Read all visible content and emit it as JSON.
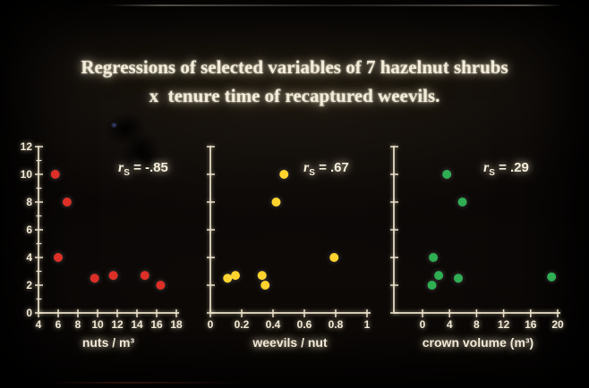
{
  "slide": {
    "title_line1": "Regressions of selected variables of 7 hazelnut shrubs",
    "title_line2": "x  tenure time of recaptured weevils."
  },
  "colors": {
    "background": "#0a0706",
    "text_glow": "#f3ecda",
    "axis": "#ece2cc",
    "red_points": "#dd2f27",
    "yellow_points": "#ffd42e",
    "green_points": "#2fae54"
  },
  "chart_data": [
    {
      "type": "scatter",
      "name": "nuts-per-m3-vs-tenure",
      "point_color": "#dd2f27",
      "r_symbol": "r",
      "r_subscript": "S",
      "r_value": "= -.85",
      "xlabel": "nuts / m³",
      "xlim": [
        4,
        18
      ],
      "xticks": [
        4,
        6,
        8,
        10,
        12,
        14,
        16,
        18
      ],
      "xtick_labels": [
        "4",
        "6",
        "8",
        "10",
        "12",
        "14",
        "16",
        "18"
      ],
      "ylim": [
        0,
        12
      ],
      "yticks": [
        0,
        2,
        4,
        6,
        8,
        10,
        12
      ],
      "ytick_labels": [
        "0",
        "2",
        "4",
        "6",
        "8",
        "10",
        "12"
      ],
      "show_ytick_labels": true,
      "minor_yticks": [
        1,
        3,
        5,
        7,
        9,
        11
      ],
      "points": [
        {
          "x": 5.7,
          "y": 10
        },
        {
          "x": 6.9,
          "y": 8
        },
        {
          "x": 6.0,
          "y": 4
        },
        {
          "x": 9.7,
          "y": 2.5
        },
        {
          "x": 11.6,
          "y": 2.7
        },
        {
          "x": 14.8,
          "y": 2.7
        },
        {
          "x": 16.4,
          "y": 2.0
        }
      ]
    },
    {
      "type": "scatter",
      "name": "weevils-per-nut-vs-tenure",
      "point_color": "#ffd42e",
      "r_symbol": "r",
      "r_subscript": "S",
      "r_value": "= .67",
      "xlabel": "weevils / nut",
      "xlim": [
        0,
        1
      ],
      "xticks": [
        0,
        0.2,
        0.4,
        0.6,
        0.8,
        1
      ],
      "xtick_labels": [
        "0",
        "0.2",
        "0.4",
        "0.6",
        "0.8",
        "1"
      ],
      "ylim": [
        0,
        12
      ],
      "yticks": [
        0,
        2,
        4,
        6,
        8,
        10,
        12
      ],
      "ytick_labels": [],
      "show_ytick_labels": false,
      "minor_yticks": [],
      "points": [
        {
          "x": 0.47,
          "y": 10
        },
        {
          "x": 0.42,
          "y": 8
        },
        {
          "x": 0.79,
          "y": 4
        },
        {
          "x": 0.11,
          "y": 2.5
        },
        {
          "x": 0.16,
          "y": 2.7
        },
        {
          "x": 0.33,
          "y": 2.7
        },
        {
          "x": 0.35,
          "y": 2.0
        }
      ]
    },
    {
      "type": "scatter",
      "name": "crown-volume-vs-tenure",
      "point_color": "#2fae54",
      "r_symbol": "r",
      "r_subscript": "S",
      "r_value": "= .29",
      "xlabel": "crown volume (m³)",
      "xlim": [
        0,
        20
      ],
      "xticks": [
        0,
        4,
        8,
        12,
        16,
        20
      ],
      "xtick_labels": [
        "0",
        "4",
        "8",
        "12",
        "16",
        "20"
      ],
      "ylim": [
        0,
        12
      ],
      "yticks": [
        0,
        2,
        4,
        6,
        8,
        10,
        12
      ],
      "ytick_labels": [],
      "show_ytick_labels": false,
      "minor_yticks": [],
      "points": [
        {
          "x": 3.6,
          "y": 10
        },
        {
          "x": 5.9,
          "y": 8
        },
        {
          "x": 1.6,
          "y": 4
        },
        {
          "x": 2.4,
          "y": 2.7
        },
        {
          "x": 5.3,
          "y": 2.5
        },
        {
          "x": 19.1,
          "y": 2.6
        },
        {
          "x": 1.4,
          "y": 2.0
        }
      ]
    }
  ]
}
